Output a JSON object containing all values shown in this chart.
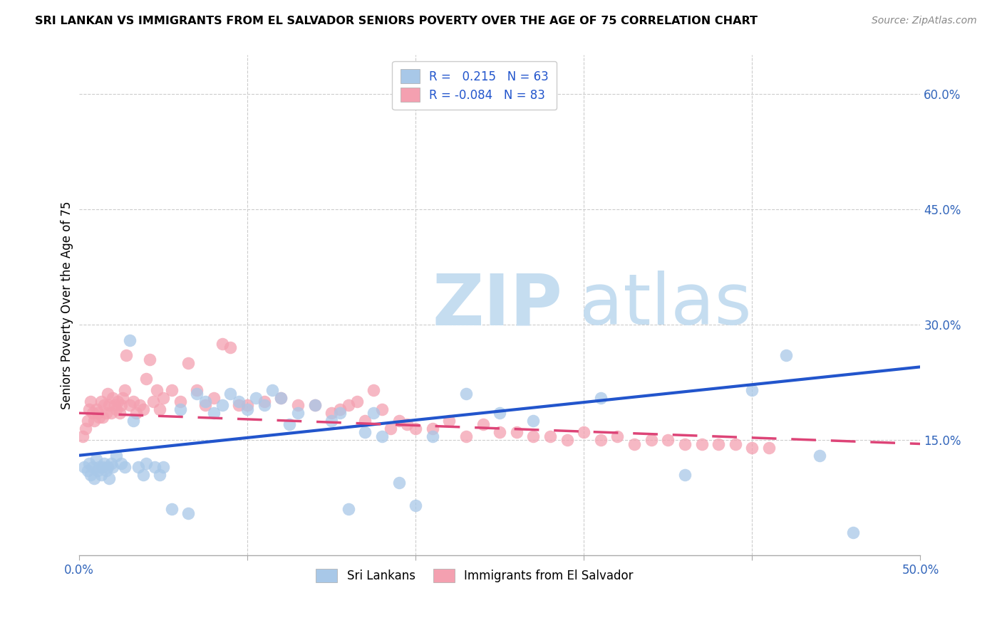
{
  "title": "SRI LANKAN VS IMMIGRANTS FROM EL SALVADOR SENIORS POVERTY OVER THE AGE OF 75 CORRELATION CHART",
  "source": "Source: ZipAtlas.com",
  "ylabel": "Seniors Poverty Over the Age of 75",
  "xlim": [
    0.0,
    0.5
  ],
  "ylim": [
    0.0,
    0.65
  ],
  "xticks": [
    0.0,
    0.1,
    0.2,
    0.3,
    0.4,
    0.5
  ],
  "xticklabels": [
    "0.0%",
    "",
    "",
    "",
    "",
    "50.0%"
  ],
  "yticks": [
    0.15,
    0.3,
    0.45,
    0.6
  ],
  "yticklabels": [
    "15.0%",
    "30.0%",
    "45.0%",
    "60.0%"
  ],
  "legend1_label": "Sri Lankans",
  "legend2_label": "Immigrants from El Salvador",
  "r1": 0.215,
  "n1": 63,
  "r2": -0.084,
  "n2": 83,
  "color_blue": "#a8c8e8",
  "color_pink": "#f4a0b0",
  "color_blue_line": "#2255cc",
  "color_pink_line": "#dd4477",
  "color_grid": "#cccccc",
  "watermark_zip": "ZIP",
  "watermark_atlas": "atlas",
  "sl_x": [
    0.003,
    0.005,
    0.006,
    0.007,
    0.008,
    0.009,
    0.01,
    0.011,
    0.012,
    0.013,
    0.014,
    0.015,
    0.016,
    0.017,
    0.018,
    0.019,
    0.02,
    0.022,
    0.025,
    0.027,
    0.03,
    0.032,
    0.035,
    0.038,
    0.04,
    0.045,
    0.048,
    0.05,
    0.055,
    0.06,
    0.065,
    0.07,
    0.075,
    0.08,
    0.085,
    0.09,
    0.095,
    0.1,
    0.105,
    0.11,
    0.115,
    0.12,
    0.125,
    0.13,
    0.14,
    0.15,
    0.155,
    0.16,
    0.17,
    0.175,
    0.18,
    0.19,
    0.2,
    0.21,
    0.23,
    0.25,
    0.27,
    0.31,
    0.36,
    0.4,
    0.42,
    0.44,
    0.46
  ],
  "sl_y": [
    0.115,
    0.11,
    0.12,
    0.105,
    0.115,
    0.1,
    0.125,
    0.11,
    0.115,
    0.105,
    0.115,
    0.12,
    0.11,
    0.115,
    0.1,
    0.12,
    0.115,
    0.13,
    0.12,
    0.115,
    0.28,
    0.175,
    0.115,
    0.105,
    0.12,
    0.115,
    0.105,
    0.115,
    0.06,
    0.19,
    0.055,
    0.21,
    0.2,
    0.185,
    0.195,
    0.21,
    0.2,
    0.19,
    0.205,
    0.195,
    0.215,
    0.205,
    0.17,
    0.185,
    0.195,
    0.175,
    0.185,
    0.06,
    0.16,
    0.185,
    0.155,
    0.095,
    0.065,
    0.155,
    0.21,
    0.185,
    0.175,
    0.205,
    0.105,
    0.215,
    0.26,
    0.13,
    0.03
  ],
  "es_x": [
    0.002,
    0.004,
    0.005,
    0.006,
    0.007,
    0.008,
    0.009,
    0.01,
    0.011,
    0.012,
    0.013,
    0.014,
    0.015,
    0.016,
    0.017,
    0.018,
    0.019,
    0.02,
    0.021,
    0.022,
    0.023,
    0.024,
    0.025,
    0.026,
    0.027,
    0.028,
    0.03,
    0.032,
    0.034,
    0.036,
    0.038,
    0.04,
    0.042,
    0.044,
    0.046,
    0.048,
    0.05,
    0.055,
    0.06,
    0.065,
    0.07,
    0.075,
    0.08,
    0.085,
    0.09,
    0.095,
    0.1,
    0.11,
    0.12,
    0.13,
    0.14,
    0.15,
    0.155,
    0.16,
    0.165,
    0.17,
    0.175,
    0.18,
    0.185,
    0.19,
    0.195,
    0.2,
    0.21,
    0.22,
    0.23,
    0.24,
    0.25,
    0.26,
    0.27,
    0.28,
    0.29,
    0.3,
    0.31,
    0.32,
    0.33,
    0.34,
    0.35,
    0.36,
    0.37,
    0.38,
    0.39,
    0.4,
    0.41
  ],
  "es_y": [
    0.155,
    0.165,
    0.175,
    0.19,
    0.2,
    0.185,
    0.175,
    0.19,
    0.185,
    0.18,
    0.2,
    0.18,
    0.195,
    0.185,
    0.21,
    0.195,
    0.185,
    0.205,
    0.195,
    0.19,
    0.2,
    0.185,
    0.195,
    0.205,
    0.215,
    0.26,
    0.195,
    0.2,
    0.185,
    0.195,
    0.19,
    0.23,
    0.255,
    0.2,
    0.215,
    0.19,
    0.205,
    0.215,
    0.2,
    0.25,
    0.215,
    0.195,
    0.205,
    0.275,
    0.27,
    0.195,
    0.195,
    0.2,
    0.205,
    0.195,
    0.195,
    0.185,
    0.19,
    0.195,
    0.2,
    0.175,
    0.215,
    0.19,
    0.165,
    0.175,
    0.17,
    0.165,
    0.165,
    0.175,
    0.155,
    0.17,
    0.16,
    0.16,
    0.155,
    0.155,
    0.15,
    0.16,
    0.15,
    0.155,
    0.145,
    0.15,
    0.15,
    0.145,
    0.145,
    0.145,
    0.145,
    0.14,
    0.14
  ],
  "sl_line_x": [
    0.0,
    0.5
  ],
  "sl_line_y": [
    0.13,
    0.245
  ],
  "es_line_x": [
    0.0,
    0.5
  ],
  "es_line_y": [
    0.185,
    0.145
  ]
}
